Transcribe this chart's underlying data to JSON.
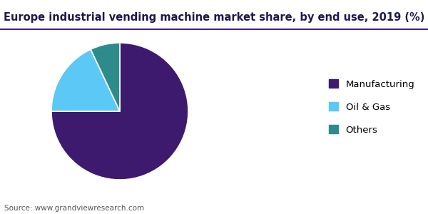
{
  "title": "Europe industrial vending machine market share, by end use, 2019 (%)",
  "labels": [
    "Manufacturing",
    "Oil & Gas",
    "Others"
  ],
  "values": [
    75.0,
    18.0,
    7.0
  ],
  "colors": [
    "#3d1a6e",
    "#5bc8f5",
    "#2e8b8b"
  ],
  "startangle": 90,
  "legend_labels": [
    "Manufacturing",
    "Oil & Gas",
    "Others"
  ],
  "source_text": "Source: www.grandviewresearch.com",
  "title_fontsize": 10.5,
  "legend_fontsize": 9.5,
  "source_fontsize": 7.5,
  "background_color": "#ffffff",
  "header_line_color": "#4a2080",
  "wedge_edge_color": "#ffffff",
  "title_color": "#1a1a4e"
}
